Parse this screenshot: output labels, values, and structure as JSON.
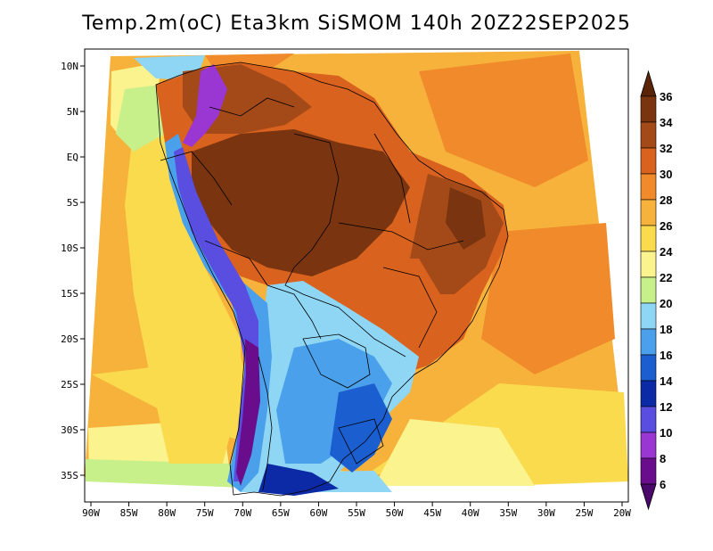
{
  "title": "Temp.2m(oC)  Eta3km  SiSMOM  140h  20Z22SEP2025",
  "map": {
    "lon_labels": [
      "90W",
      "85W",
      "80W",
      "75W",
      "70W",
      "65W",
      "60W",
      "55W",
      "50W",
      "45W",
      "40W",
      "35W",
      "30W",
      "25W",
      "20W"
    ],
    "lat_labels": [
      "10N",
      "5N",
      "EQ",
      "5S",
      "10S",
      "15S",
      "20S",
      "25S",
      "30S",
      "35S"
    ]
  },
  "colorbar": {
    "levels": [
      "36",
      "34",
      "32",
      "30",
      "28",
      "26",
      "24",
      "22",
      "20",
      "18",
      "16",
      "14",
      "12",
      "10",
      "8",
      "6"
    ],
    "colors": {
      "above_36": "#5a2408",
      "34_36": "#7a3510",
      "32_34": "#a44a18",
      "30_32": "#d8621e",
      "28_30": "#f08a2a",
      "26_28": "#f6b23a",
      "24_26": "#fadb4e",
      "22_24": "#faf38e",
      "20_22": "#c7f08a",
      "18_20": "#8fd6f5",
      "16_18": "#4aa0ea",
      "14_16": "#1a5ed0",
      "12_14": "#0c2aa6",
      "10_12": "#5a4ee0",
      "8_10": "#9a36d2",
      "6_8": "#6a0d8c",
      "below_6": "#4a086a"
    }
  }
}
